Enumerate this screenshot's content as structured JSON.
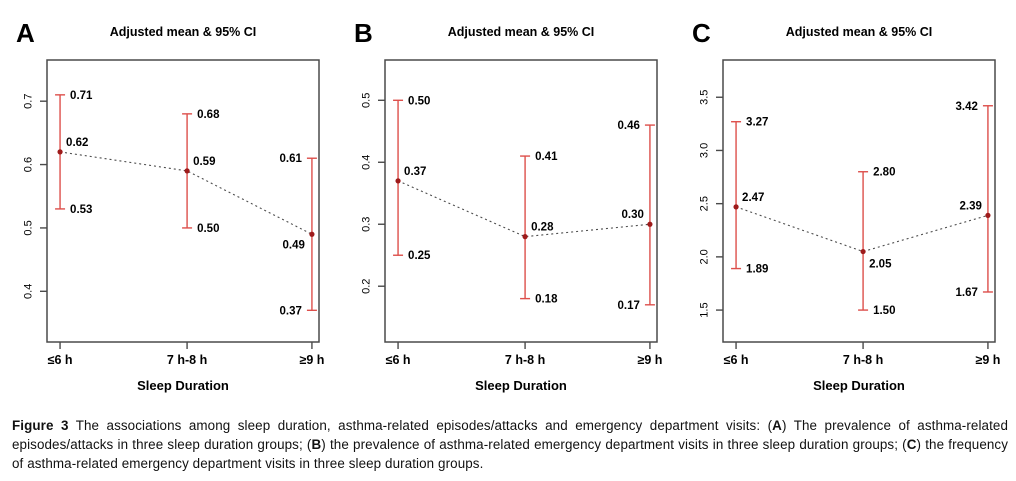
{
  "figure": {
    "caption": {
      "segments": [
        {
          "text": "Figure 3",
          "bold": true
        },
        {
          "text": " The associations among sleep duration, asthma-related episodes/attacks and emergency department visits: (",
          "bold": false
        },
        {
          "text": "A",
          "bold": true
        },
        {
          "text": ") The prevalence of asthma-related episodes/attacks in three sleep duration groups; (",
          "bold": false
        },
        {
          "text": "B",
          "bold": true
        },
        {
          "text": ") the prevalence of asthma-related emergency department visits in three sleep duration groups; (",
          "bold": false
        },
        {
          "text": "C",
          "bold": true
        },
        {
          "text": ") the frequency of asthma-related emergency department visits in three sleep duration groups.",
          "bold": false
        }
      ]
    },
    "colors": {
      "error_bar": "#dd4f4b",
      "mean_point": "#9e1b1b",
      "trend_line": "#4d4d4d",
      "axis_box": "#4a4a4a",
      "tick": "#4a4a4a",
      "text": "#000000"
    }
  },
  "chart_data": [
    {
      "type": "line",
      "panel_label": "A",
      "title": "Adjusted mean & 95% CI",
      "xlabel": "Sleep Duration",
      "categories": [
        "≤6 h",
        "7 h-8 h",
        "≥9 h"
      ],
      "means": [
        0.62,
        0.59,
        0.49
      ],
      "ci_low": [
        0.53,
        0.5,
        0.37
      ],
      "ci_high": [
        0.71,
        0.68,
        0.61
      ],
      "mean_labels": [
        "0.62",
        "0.59",
        "0.49"
      ],
      "ci_low_labels": [
        "0.53",
        "0.50",
        "0.37"
      ],
      "ci_high_labels": [
        "0.71",
        "0.68",
        "0.61"
      ],
      "yticks": [
        {
          "value": 0.4,
          "label": "0.4"
        },
        {
          "value": 0.5,
          "label": "0.5"
        },
        {
          "value": 0.6,
          "label": "0.6"
        },
        {
          "value": 0.7,
          "label": "0.7"
        }
      ],
      "ylim": [
        0.32,
        0.765
      ],
      "grid": false,
      "legend": "none",
      "layout_hints": {
        "ci_label_side": [
          "right",
          "right",
          "left"
        ],
        "mean_label_pos": [
          "above-right",
          "above-right",
          "below-left"
        ]
      }
    },
    {
      "type": "line",
      "panel_label": "B",
      "title": "Adjusted mean & 95% CI",
      "xlabel": "Sleep Duration",
      "categories": [
        "≤6 h",
        "7 h-8 h",
        "≥9 h"
      ],
      "means": [
        0.37,
        0.28,
        0.3
      ],
      "ci_low": [
        0.25,
        0.18,
        0.17
      ],
      "ci_high": [
        0.5,
        0.41,
        0.46
      ],
      "mean_labels": [
        "0.37",
        "0.28",
        "0.30"
      ],
      "ci_low_labels": [
        "0.25",
        "0.18",
        "0.17"
      ],
      "ci_high_labels": [
        "0.50",
        "0.41",
        "0.46"
      ],
      "yticks": [
        {
          "value": 0.2,
          "label": "0.2"
        },
        {
          "value": 0.3,
          "label": "0.3"
        },
        {
          "value": 0.4,
          "label": "0.4"
        },
        {
          "value": 0.5,
          "label": "0.5"
        }
      ],
      "ylim": [
        0.11,
        0.565
      ],
      "grid": false,
      "legend": "none",
      "layout_hints": {
        "ci_label_side": [
          "right",
          "right",
          "left"
        ],
        "mean_label_pos": [
          "above-right",
          "above-right",
          "above-left"
        ]
      }
    },
    {
      "type": "line",
      "panel_label": "C",
      "title": "Adjusted mean & 95% CI",
      "xlabel": "Sleep Duration",
      "categories": [
        "≤6 h",
        "7 h-8 h",
        "≥9 h"
      ],
      "means": [
        2.47,
        2.05,
        2.39
      ],
      "ci_low": [
        1.89,
        1.5,
        1.67
      ],
      "ci_high": [
        3.27,
        2.8,
        3.42
      ],
      "mean_labels": [
        "2.47",
        "2.05",
        "2.39"
      ],
      "ci_low_labels": [
        "1.89",
        "1.50",
        "1.67"
      ],
      "ci_high_labels": [
        "3.27",
        "2.80",
        "3.42"
      ],
      "yticks": [
        {
          "value": 1.5,
          "label": "1.5"
        },
        {
          "value": 2.0,
          "label": "2.0"
        },
        {
          "value": 2.5,
          "label": "2.5"
        },
        {
          "value": 3.0,
          "label": "3.0"
        },
        {
          "value": 3.5,
          "label": "3.5"
        }
      ],
      "ylim": [
        1.2,
        3.85
      ],
      "grid": false,
      "legend": "none",
      "layout_hints": {
        "ci_label_side": [
          "right",
          "right",
          "left"
        ],
        "mean_label_pos": [
          "above-right",
          "below-right",
          "above-left"
        ]
      }
    }
  ]
}
